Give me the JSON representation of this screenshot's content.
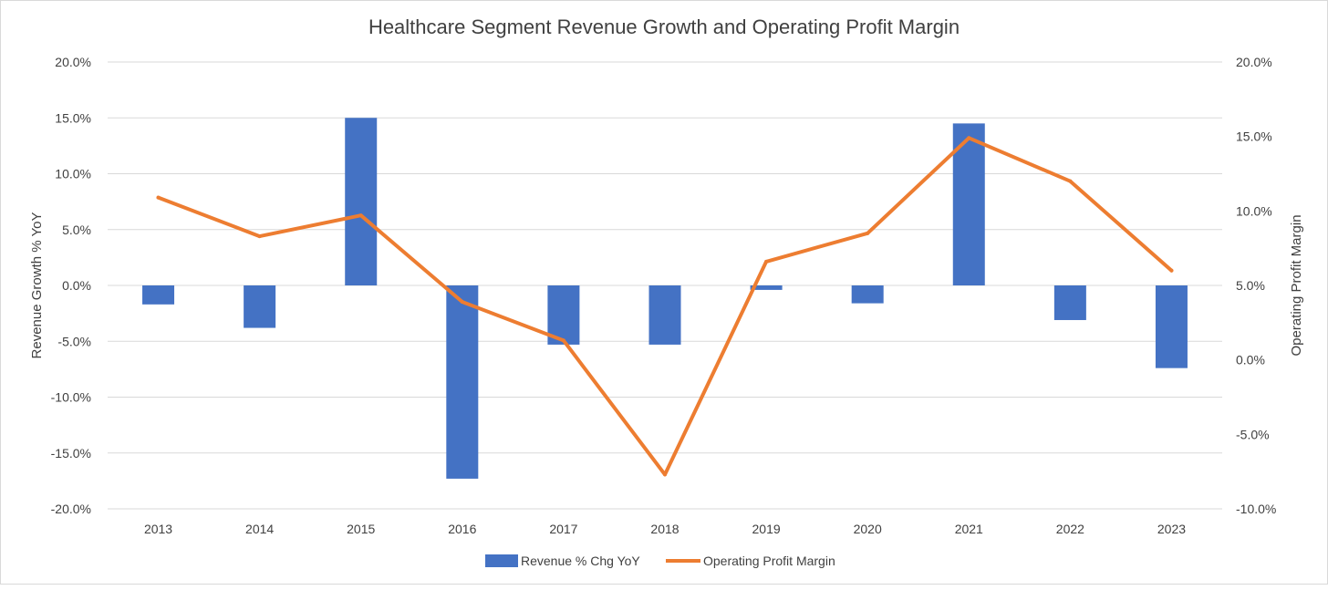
{
  "chart_data": {
    "type": "bar",
    "title": "Healthcare Segment Revenue Growth and Operating Profit Margin",
    "categories": [
      "2013",
      "2014",
      "2015",
      "2016",
      "2017",
      "2018",
      "2019",
      "2020",
      "2021",
      "2022",
      "2023"
    ],
    "series": [
      {
        "name": "Revenue % Chg YoY",
        "type": "bar",
        "axis": "left",
        "color": "#4472C4",
        "values": [
          -1.7,
          -3.8,
          15.0,
          -17.3,
          -5.3,
          -5.3,
          -0.4,
          -1.6,
          14.5,
          -3.1,
          -7.4
        ]
      },
      {
        "name": "Operating Profit Margin",
        "type": "line",
        "axis": "right",
        "color": "#ED7D31",
        "values": [
          10.9,
          8.3,
          9.7,
          3.9,
          1.3,
          -7.7,
          6.6,
          8.5,
          14.9,
          12.0,
          6.0
        ]
      }
    ],
    "ylabel": "Revenue Growth % YoY",
    "y2label": "Operating Profit Margin",
    "ylim": [
      -20,
      20
    ],
    "y2lim": [
      -10,
      20
    ],
    "yticks": [
      "20.0%",
      "15.0%",
      "10.0%",
      "5.0%",
      "0.0%",
      "-5.0%",
      "-10.0%",
      "-15.0%",
      "-20.0%"
    ],
    "y2ticks": [
      "20.0%",
      "15.0%",
      "10.0%",
      "5.0%",
      "0.0%",
      "-5.0%",
      "-10.0%"
    ],
    "grid": true,
    "legend_position": "bottom"
  }
}
